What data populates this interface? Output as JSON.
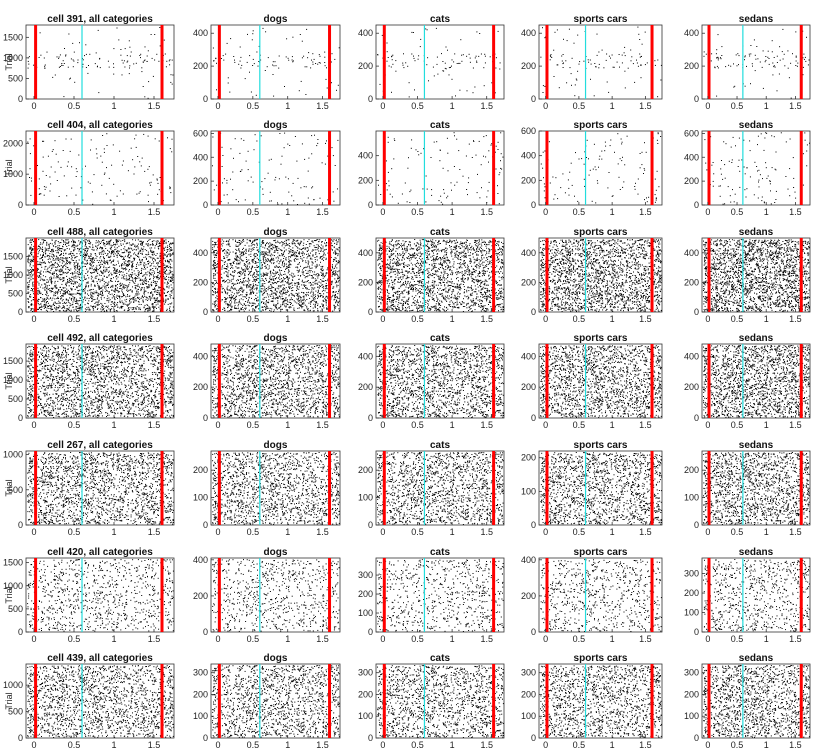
{
  "colors": {
    "stimulus_lines": "#ff0000",
    "midpoint_line": "#22dddd",
    "spikes": "#000000",
    "axes": "#333333"
  },
  "chart_data": {
    "type": "scatter",
    "description_kind": "raster",
    "ylabel": "Trial",
    "xlim": [
      -0.1,
      1.75
    ],
    "xticks": [
      0,
      0.5,
      1,
      1.5
    ],
    "xtick_labels": [
      "0",
      "0.5",
      "1",
      "1.5"
    ],
    "vertical_lines": {
      "red": [
        0.02,
        1.6
      ],
      "cyan": [
        0.6
      ]
    },
    "columns": [
      "all categories",
      "dogs",
      "cats",
      "sports cars",
      "sedans"
    ],
    "rows": [
      {
        "title": "cell 391, all categories",
        "density": 0.04,
        "panels": [
          {
            "title": "cell 391, all categories",
            "ylim": [
              0,
              1800
            ],
            "yticks": [
              0,
              500,
              1000,
              1500
            ]
          },
          {
            "title": "dogs",
            "ylim": [
              0,
              450
            ],
            "yticks": [
              0,
              200,
              400
            ]
          },
          {
            "title": "cats",
            "ylim": [
              0,
              450
            ],
            "yticks": [
              0,
              200,
              400
            ]
          },
          {
            "title": "sports cars",
            "ylim": [
              0,
              450
            ],
            "yticks": [
              0,
              200,
              400
            ]
          },
          {
            "title": "sedans",
            "ylim": [
              0,
              450
            ],
            "yticks": [
              0,
              200,
              400
            ]
          }
        ]
      },
      {
        "title": "cell 404, all categories",
        "density": 0.04,
        "panels": [
          {
            "title": "cell 404, all categories",
            "ylim": [
              0,
              2400
            ],
            "yticks": [
              0,
              1000,
              2000
            ]
          },
          {
            "title": "dogs",
            "ylim": [
              0,
              620
            ],
            "yticks": [
              0,
              200,
              400,
              600
            ]
          },
          {
            "title": "cats",
            "ylim": [
              0,
              600
            ],
            "yticks": [
              0,
              200,
              400
            ]
          },
          {
            "title": "sports cars",
            "ylim": [
              0,
              600
            ],
            "yticks": [
              0,
              200,
              400,
              600
            ]
          },
          {
            "title": "sedans",
            "ylim": [
              0,
              620
            ],
            "yticks": [
              0,
              200,
              400,
              600
            ]
          }
        ]
      },
      {
        "title": "cell 488, all categories",
        "density": 0.9,
        "panels": [
          {
            "title": "cell 488, all categories",
            "ylim": [
              0,
              2000
            ],
            "yticks": [
              0,
              500,
              1000,
              1500
            ]
          },
          {
            "title": "dogs",
            "ylim": [
              0,
              500
            ],
            "yticks": [
              0,
              200,
              400
            ]
          },
          {
            "title": "cats",
            "ylim": [
              0,
              500
            ],
            "yticks": [
              0,
              200,
              400
            ]
          },
          {
            "title": "sports cars",
            "ylim": [
              0,
              500
            ],
            "yticks": [
              0,
              200,
              400
            ]
          },
          {
            "title": "sedans",
            "ylim": [
              0,
              500
            ],
            "yticks": [
              0,
              200,
              400
            ]
          }
        ]
      },
      {
        "title": "cell 492, all categories",
        "density": 0.75,
        "panels": [
          {
            "title": "cell 492, all categories",
            "ylim": [
              0,
              1950
            ],
            "yticks": [
              0,
              500,
              1000,
              1500
            ]
          },
          {
            "title": "dogs",
            "ylim": [
              0,
              480
            ],
            "yticks": [
              0,
              200,
              400
            ]
          },
          {
            "title": "cats",
            "ylim": [
              0,
              480
            ],
            "yticks": [
              0,
              200,
              400
            ]
          },
          {
            "title": "sports cars",
            "ylim": [
              0,
              480
            ],
            "yticks": [
              0,
              200,
              400
            ]
          },
          {
            "title": "sedans",
            "ylim": [
              0,
              480
            ],
            "yticks": [
              0,
              200,
              400
            ]
          }
        ]
      },
      {
        "title": "cell 267, all categories",
        "density": 0.65,
        "panels": [
          {
            "title": "cell 267, all categories",
            "ylim": [
              0,
              1050
            ],
            "yticks": [
              0,
              500,
              1000
            ]
          },
          {
            "title": "dogs",
            "ylim": [
              0,
              270
            ],
            "yticks": [
              0,
              100,
              200
            ]
          },
          {
            "title": "cats",
            "ylim": [
              0,
              270
            ],
            "yticks": [
              0,
              100,
              200
            ]
          },
          {
            "title": "sports cars",
            "ylim": [
              0,
              220
            ],
            "yticks": [
              0,
              100,
              200
            ]
          },
          {
            "title": "sedans",
            "ylim": [
              0,
              270
            ],
            "yticks": [
              0,
              100,
              200
            ]
          }
        ]
      },
      {
        "title": "cell 420, all categories",
        "density": 0.3,
        "panels": [
          {
            "title": "cell 420, all categories",
            "ylim": [
              0,
              1600
            ],
            "yticks": [
              0,
              500,
              1000,
              1500
            ]
          },
          {
            "title": "dogs",
            "ylim": [
              0,
              410
            ],
            "yticks": [
              0,
              200,
              400
            ]
          },
          {
            "title": "cats",
            "ylim": [
              0,
              390
            ],
            "yticks": [
              0,
              100,
              200,
              300
            ]
          },
          {
            "title": "sports cars",
            "ylim": [
              0,
              410
            ],
            "yticks": [
              0,
              200,
              400
            ]
          },
          {
            "title": "sedans",
            "ylim": [
              0,
              380
            ],
            "yticks": [
              0,
              100,
              200,
              300
            ]
          }
        ]
      },
      {
        "title": "cell 439, all categories",
        "density": 0.6,
        "panels": [
          {
            "title": "cell 439, all categories",
            "ylim": [
              0,
              1400
            ],
            "yticks": [
              0,
              500,
              1000
            ]
          },
          {
            "title": "dogs",
            "ylim": [
              0,
              340
            ],
            "yticks": [
              0,
              100,
              200,
              300
            ]
          },
          {
            "title": "cats",
            "ylim": [
              0,
              340
            ],
            "yticks": [
              0,
              100,
              200,
              300
            ]
          },
          {
            "title": "sports cars",
            "ylim": [
              0,
              340
            ],
            "yticks": [
              0,
              100,
              200,
              300
            ]
          },
          {
            "title": "sedans",
            "ylim": [
              0,
              340
            ],
            "yticks": [
              0,
              100,
              200,
              300
            ]
          }
        ]
      }
    ]
  }
}
